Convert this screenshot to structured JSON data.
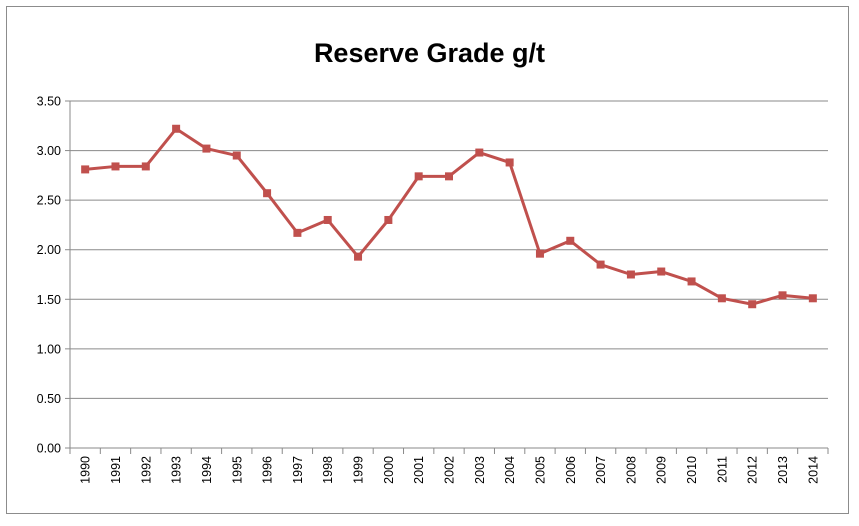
{
  "chart_data": {
    "type": "line",
    "title": "Reserve Grade g/t",
    "xlabel": "",
    "ylabel": "",
    "categories": [
      "1990",
      "1991",
      "1992",
      "1993",
      "1994",
      "1995",
      "1996",
      "1997",
      "1998",
      "1999",
      "2000",
      "2001",
      "2002",
      "2003",
      "2004",
      "2005",
      "2006",
      "2007",
      "2008",
      "2009",
      "2010",
      "2011",
      "2012",
      "2013",
      "2014"
    ],
    "series": [
      {
        "values": [
          2.81,
          2.84,
          2.84,
          3.22,
          3.02,
          2.95,
          2.57,
          2.17,
          2.3,
          1.93,
          2.3,
          2.74,
          2.74,
          2.98,
          2.88,
          1.96,
          2.09,
          1.85,
          1.75,
          1.78,
          1.68,
          1.51,
          1.45,
          1.54,
          1.51
        ],
        "color": "#c0504d"
      }
    ],
    "ylim": [
      0,
      3.5
    ],
    "yticks": [
      "0.00",
      "0.50",
      "1.00",
      "1.50",
      "2.00",
      "2.50",
      "3.00",
      "3.50"
    ],
    "grid": true,
    "legend": "none"
  }
}
